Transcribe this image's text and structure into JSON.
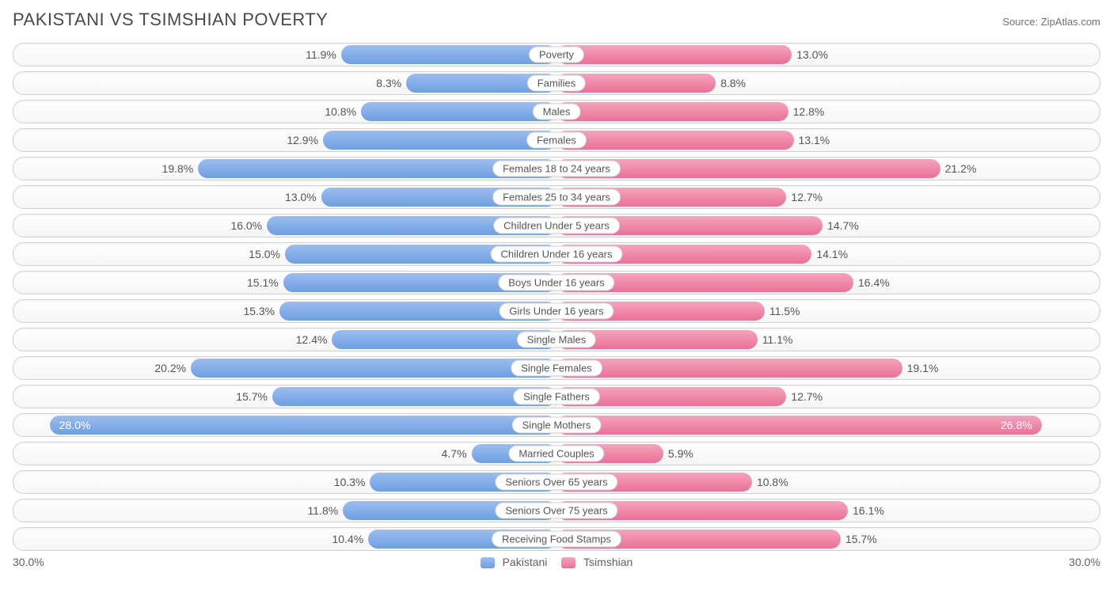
{
  "title": "PAKISTANI VS TSIMSHIAN POVERTY",
  "source": "Source: ZipAtlas.com",
  "axis_max": 30.0,
  "axis_label_left": "30.0%",
  "axis_label_right": "30.0%",
  "colors": {
    "series_a_top": "#9bbef0",
    "series_a_bottom": "#6f9ee0",
    "series_b_top": "#f5a4bd",
    "series_b_bottom": "#ea7098",
    "track_border": "#d0d0d0",
    "text": "#4a4a4a"
  },
  "legend": {
    "a": "Pakistani",
    "b": "Tsimshian"
  },
  "rows": [
    {
      "label": "Poverty",
      "a": 11.9,
      "b": 13.0
    },
    {
      "label": "Families",
      "a": 8.3,
      "b": 8.8
    },
    {
      "label": "Males",
      "a": 10.8,
      "b": 12.8
    },
    {
      "label": "Females",
      "a": 12.9,
      "b": 13.1
    },
    {
      "label": "Females 18 to 24 years",
      "a": 19.8,
      "b": 21.2
    },
    {
      "label": "Females 25 to 34 years",
      "a": 13.0,
      "b": 12.7
    },
    {
      "label": "Children Under 5 years",
      "a": 16.0,
      "b": 14.7
    },
    {
      "label": "Children Under 16 years",
      "a": 15.0,
      "b": 14.1
    },
    {
      "label": "Boys Under 16 years",
      "a": 15.1,
      "b": 16.4
    },
    {
      "label": "Girls Under 16 years",
      "a": 15.3,
      "b": 11.5
    },
    {
      "label": "Single Males",
      "a": 12.4,
      "b": 11.1
    },
    {
      "label": "Single Females",
      "a": 20.2,
      "b": 19.1
    },
    {
      "label": "Single Fathers",
      "a": 15.7,
      "b": 12.7
    },
    {
      "label": "Single Mothers",
      "a": 28.0,
      "b": 26.8
    },
    {
      "label": "Married Couples",
      "a": 4.7,
      "b": 5.9
    },
    {
      "label": "Seniors Over 65 years",
      "a": 10.3,
      "b": 10.8
    },
    {
      "label": "Seniors Over 75 years",
      "a": 11.8,
      "b": 16.1
    },
    {
      "label": "Receiving Food Stamps",
      "a": 10.4,
      "b": 15.7
    }
  ]
}
